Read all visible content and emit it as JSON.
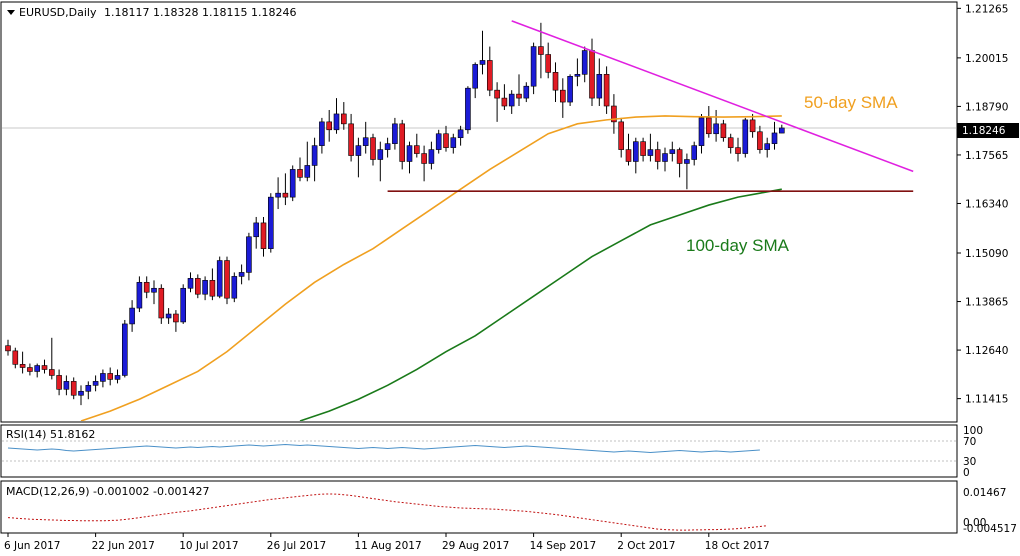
{
  "chart_data": {
    "type": "candlestick",
    "symbol": "EURUSD,Daily",
    "ohlc_readout": "1.18117 1.18328 1.18115 1.18246",
    "last_price_label": "1.18246",
    "last_price": 1.18246,
    "ylim": [
      1.1085,
      1.214
    ],
    "y_ticks": [
      "1.21265",
      "1.20015",
      "1.18790",
      "1.17565",
      "1.16340",
      "1.15090",
      "1.13865",
      "1.12640",
      "1.11415"
    ],
    "x_ticks": [
      "6 Jun 2017",
      "22 Jun 2017",
      "10 Jul 2017",
      "26 Jul 2017",
      "11 Aug 2017",
      "29 Aug 2017",
      "14 Sep 2017",
      "2 Oct 2017",
      "18 Oct 2017"
    ],
    "x_tick_index": [
      0,
      12,
      24,
      36,
      48,
      60,
      72,
      84,
      96
    ],
    "num_slots": 126,
    "candles": [
      [
        1.1275,
        1.129,
        1.125,
        1.1262
      ],
      [
        1.1262,
        1.127,
        1.1218,
        1.1228
      ],
      [
        1.1228,
        1.126,
        1.1205,
        1.122
      ],
      [
        1.122,
        1.123,
        1.12,
        1.121
      ],
      [
        1.121,
        1.123,
        1.1195,
        1.1225
      ],
      [
        1.1225,
        1.124,
        1.1205,
        1.1215
      ],
      [
        1.1215,
        1.1295,
        1.119,
        1.12
      ],
      [
        1.12,
        1.1215,
        1.115,
        1.1165
      ],
      [
        1.1165,
        1.12,
        1.115,
        1.1185
      ],
      [
        1.1185,
        1.1195,
        1.114,
        1.115
      ],
      [
        1.115,
        1.1175,
        1.1125,
        1.116
      ],
      [
        1.116,
        1.1185,
        1.114,
        1.1175
      ],
      [
        1.1175,
        1.12,
        1.116,
        1.1185
      ],
      [
        1.1185,
        1.1215,
        1.117,
        1.1205
      ],
      [
        1.1205,
        1.122,
        1.1175,
        1.119
      ],
      [
        1.119,
        1.1215,
        1.118,
        1.12
      ],
      [
        1.12,
        1.134,
        1.1195,
        1.133
      ],
      [
        1.133,
        1.139,
        1.131,
        1.137
      ],
      [
        1.137,
        1.145,
        1.136,
        1.1435
      ],
      [
        1.1435,
        1.145,
        1.1395,
        1.141
      ],
      [
        1.141,
        1.144,
        1.138,
        1.142
      ],
      [
        1.142,
        1.143,
        1.133,
        1.1345
      ],
      [
        1.1345,
        1.137,
        1.133,
        1.1355
      ],
      [
        1.1355,
        1.1365,
        1.131,
        1.1335
      ],
      [
        1.1335,
        1.143,
        1.133,
        1.142
      ],
      [
        1.142,
        1.146,
        1.141,
        1.1445
      ],
      [
        1.1445,
        1.1455,
        1.1395,
        1.1405
      ],
      [
        1.1405,
        1.145,
        1.139,
        1.144
      ],
      [
        1.144,
        1.147,
        1.139,
        1.14
      ],
      [
        1.14,
        1.15,
        1.1395,
        1.149
      ],
      [
        1.149,
        1.15,
        1.138,
        1.1395
      ],
      [
        1.1395,
        1.146,
        1.1385,
        1.145
      ],
      [
        1.145,
        1.148,
        1.143,
        1.146
      ],
      [
        1.146,
        1.156,
        1.144,
        1.155
      ],
      [
        1.155,
        1.16,
        1.152,
        1.1585
      ],
      [
        1.1585,
        1.16,
        1.15,
        1.152
      ],
      [
        1.152,
        1.166,
        1.151,
        1.165
      ],
      [
        1.165,
        1.17,
        1.162,
        1.166
      ],
      [
        1.166,
        1.171,
        1.163,
        1.165
      ],
      [
        1.165,
        1.173,
        1.164,
        1.172
      ],
      [
        1.172,
        1.175,
        1.169,
        1.17
      ],
      [
        1.17,
        1.179,
        1.169,
        1.173
      ],
      [
        1.173,
        1.18,
        1.169,
        1.178
      ],
      [
        1.178,
        1.185,
        1.176,
        1.184
      ],
      [
        1.184,
        1.187,
        1.179,
        1.182
      ],
      [
        1.182,
        1.19,
        1.181,
        1.186
      ],
      [
        1.186,
        1.189,
        1.182,
        1.1835
      ],
      [
        1.1835,
        1.186,
        1.174,
        1.1755
      ],
      [
        1.1755,
        1.18,
        1.17,
        1.178
      ],
      [
        1.178,
        1.184,
        1.176,
        1.18
      ],
      [
        1.18,
        1.181,
        1.173,
        1.1745
      ],
      [
        1.1745,
        1.179,
        1.169,
        1.177
      ],
      [
        1.177,
        1.18,
        1.175,
        1.1785
      ],
      [
        1.1785,
        1.185,
        1.177,
        1.1835
      ],
      [
        1.1835,
        1.1845,
        1.172,
        1.174
      ],
      [
        1.174,
        1.179,
        1.171,
        1.178
      ],
      [
        1.178,
        1.181,
        1.175,
        1.176
      ],
      [
        1.176,
        1.178,
        1.169,
        1.1735
      ],
      [
        1.1735,
        1.179,
        1.172,
        1.177
      ],
      [
        1.177,
        1.182,
        1.176,
        1.181
      ],
      [
        1.181,
        1.183,
        1.1765,
        1.1775
      ],
      [
        1.1775,
        1.181,
        1.176,
        1.18
      ],
      [
        1.18,
        1.183,
        1.178,
        1.182
      ],
      [
        1.182,
        1.193,
        1.181,
        1.1925
      ],
      [
        1.1925,
        1.199,
        1.19,
        1.1985
      ],
      [
        1.1985,
        1.207,
        1.196,
        1.1995
      ],
      [
        1.1995,
        1.203,
        1.1905,
        1.192
      ],
      [
        1.192,
        1.194,
        1.184,
        1.19
      ],
      [
        1.19,
        1.1935,
        1.187,
        1.188
      ],
      [
        1.188,
        1.192,
        1.186,
        1.191
      ],
      [
        1.191,
        1.196,
        1.188,
        1.19
      ],
      [
        1.19,
        1.194,
        1.189,
        1.193
      ],
      [
        1.193,
        1.204,
        1.191,
        1.203
      ],
      [
        1.203,
        1.209,
        1.195,
        1.201
      ],
      [
        1.201,
        1.204,
        1.195,
        1.1965
      ],
      [
        1.1965,
        1.199,
        1.189,
        1.192
      ],
      [
        1.192,
        1.195,
        1.185,
        1.189
      ],
      [
        1.189,
        1.196,
        1.188,
        1.1955
      ],
      [
        1.1955,
        1.2,
        1.193,
        1.196
      ],
      [
        1.196,
        1.203,
        1.194,
        1.202
      ],
      [
        1.202,
        1.205,
        1.188,
        1.19
      ],
      [
        1.19,
        1.2,
        1.188,
        1.196
      ],
      [
        1.196,
        1.198,
        1.186,
        1.188
      ],
      [
        1.188,
        1.191,
        1.181,
        1.184
      ],
      [
        1.184,
        1.185,
        1.175,
        1.177
      ],
      [
        1.177,
        1.181,
        1.173,
        1.174
      ],
      [
        1.174,
        1.18,
        1.171,
        1.179
      ],
      [
        1.179,
        1.18,
        1.174,
        1.1755
      ],
      [
        1.1755,
        1.181,
        1.174,
        1.177
      ],
      [
        1.177,
        1.179,
        1.172,
        1.174
      ],
      [
        1.174,
        1.1775,
        1.1715,
        1.176
      ],
      [
        1.176,
        1.179,
        1.174,
        1.177
      ],
      [
        1.177,
        1.1775,
        1.17,
        1.1735
      ],
      [
        1.1735,
        1.176,
        1.167,
        1.1745
      ],
      [
        1.1745,
        1.179,
        1.173,
        1.178
      ],
      [
        1.178,
        1.186,
        1.176,
        1.185
      ],
      [
        1.185,
        1.188,
        1.18,
        1.181
      ],
      [
        1.181,
        1.187,
        1.179,
        1.1835
      ],
      [
        1.1835,
        1.1845,
        1.179,
        1.18
      ],
      [
        1.18,
        1.181,
        1.176,
        1.1775
      ],
      [
        1.1775,
        1.18,
        1.174,
        1.176
      ],
      [
        1.176,
        1.185,
        1.175,
        1.1845
      ],
      [
        1.1845,
        1.186,
        1.18,
        1.1815
      ],
      [
        1.1815,
        1.183,
        1.176,
        1.177
      ],
      [
        1.177,
        1.18,
        1.175,
        1.1785
      ],
      [
        1.1785,
        1.184,
        1.177,
        1.1812
      ],
      [
        1.18117,
        1.18328,
        1.18115,
        1.18246
      ]
    ],
    "series": [
      {
        "name": "50-day SMA",
        "color": "#f0a020",
        "x": [
          10,
          14,
          18,
          22,
          26,
          30,
          34,
          38,
          42,
          46,
          50,
          54,
          58,
          62,
          66,
          70,
          74,
          78,
          82,
          86,
          90,
          94,
          98,
          102,
          106
        ],
        "y": [
          1.1085,
          1.111,
          1.114,
          1.1175,
          1.121,
          1.126,
          1.132,
          1.138,
          1.1435,
          1.148,
          1.152,
          1.157,
          1.162,
          1.167,
          1.172,
          1.1765,
          1.181,
          1.1835,
          1.1845,
          1.1852,
          1.1855,
          1.1853,
          1.1852,
          1.1853,
          1.1855
        ]
      },
      {
        "name": "100-day SMA",
        "color": "#1a7a1a",
        "x": [
          40,
          44,
          48,
          52,
          56,
          60,
          64,
          68,
          72,
          76,
          80,
          84,
          88,
          92,
          96,
          100,
          103,
          106
        ],
        "y": [
          1.1085,
          1.111,
          1.114,
          1.1175,
          1.1215,
          1.126,
          1.13,
          1.135,
          1.14,
          1.145,
          1.15,
          1.154,
          1.158,
          1.1605,
          1.163,
          1.165,
          1.166,
          1.167
        ]
      }
    ],
    "trendline": {
      "x": [
        69,
        124
      ],
      "y": [
        1.2095,
        1.1715
      ],
      "color": "#e020e0"
    },
    "support": {
      "x": [
        52,
        124
      ],
      "y": [
        1.1665,
        1.1665
      ],
      "color": "#801010"
    },
    "annotations": [
      {
        "text": "50-day SMA",
        "color": "#f0a020"
      },
      {
        "text": "100-day SMA",
        "color": "#1a7a1a"
      }
    ],
    "rsi": {
      "label": "RSI(14) 51.8162",
      "ticks": [
        "100",
        "70",
        "30",
        "0"
      ],
      "values": [
        56,
        55,
        54,
        53,
        52,
        53,
        54,
        53,
        51,
        50,
        51,
        52,
        53,
        54,
        55,
        56,
        57,
        58,
        59,
        60,
        59,
        58,
        57,
        56,
        57,
        58,
        57,
        58,
        59,
        58,
        59,
        60,
        61,
        62,
        61,
        60,
        61,
        62,
        63,
        62,
        61,
        62,
        61,
        60,
        59,
        58,
        57,
        56,
        55,
        56,
        57,
        56,
        55,
        56,
        57,
        56,
        55,
        54,
        55,
        56,
        57,
        58,
        59,
        60,
        61,
        60,
        59,
        58,
        57,
        58,
        59,
        60,
        59,
        58,
        57,
        56,
        55,
        54,
        53,
        52,
        51,
        50,
        49,
        48,
        49,
        50,
        49,
        48,
        47,
        48,
        49,
        50,
        51,
        50,
        49,
        48,
        49,
        50,
        49,
        48,
        49,
        50,
        51,
        52
      ]
    },
    "macd": {
      "label": "MACD(12,26,9) -0.001002 -0.001427",
      "ticks": [
        "0.01467",
        "0.00",
        "-0.004517"
      ],
      "values": [
        0.001,
        0.0008,
        0.0006,
        0.0004,
        0.0003,
        0.0002,
        0.0001,
        0.0,
        -0.0001,
        -0.0001,
        -0.0002,
        -0.0002,
        -0.0002,
        -0.0002,
        -0.0001,
        0.0,
        0.0003,
        0.0006,
        0.001,
        0.0014,
        0.0018,
        0.0022,
        0.0026,
        0.003,
        0.0033,
        0.0036,
        0.004,
        0.0044,
        0.0048,
        0.0052,
        0.0056,
        0.006,
        0.0064,
        0.0068,
        0.0072,
        0.0076,
        0.008,
        0.0083,
        0.0086,
        0.0089,
        0.0092,
        0.0095,
        0.0098,
        0.01,
        0.0101,
        0.01,
        0.0098,
        0.0095,
        0.0091,
        0.0087,
        0.0083,
        0.0079,
        0.0075,
        0.0071,
        0.0068,
        0.0065,
        0.0062,
        0.0059,
        0.0056,
        0.0053,
        0.0051,
        0.0049,
        0.0047,
        0.0046,
        0.0045,
        0.0044,
        0.0043,
        0.0042,
        0.004,
        0.0038,
        0.0036,
        0.0034,
        0.0031,
        0.0028,
        0.0025,
        0.0022,
        0.0018,
        0.0014,
        0.001,
        0.0006,
        0.0002,
        -0.0002,
        -0.0006,
        -0.001,
        -0.0014,
        -0.0018,
        -0.0022,
        -0.0026,
        -0.003,
        -0.0034,
        -0.0036,
        -0.0037,
        -0.0038,
        -0.0038,
        -0.0037,
        -0.0037,
        -0.0036,
        -0.0036,
        -0.0035,
        -0.0034,
        -0.0032,
        -0.003,
        -0.0027,
        -0.0024,
        -0.0021
      ]
    }
  }
}
